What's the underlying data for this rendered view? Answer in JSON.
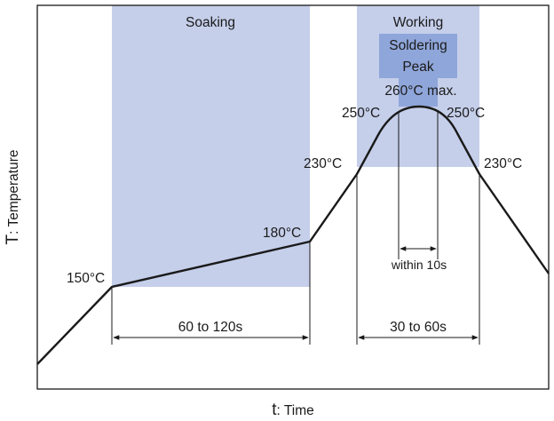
{
  "colors": {
    "zone": "#c5cfea",
    "peak_zone": "#8fa6da",
    "curve": "#1a1a1a",
    "frame": "#1a1a1a"
  },
  "zones": {
    "soaking": "Soaking",
    "working": "Working",
    "soldering_line1": "Soldering",
    "soldering_line2": "Peak"
  },
  "temps": {
    "t150": "150°C",
    "t180": "180°C",
    "t230_left": "230°C",
    "t230_right": "230°C",
    "t250_left": "250°C",
    "t250_right": "250°C",
    "peak_max": "260°C max."
  },
  "durations": {
    "soak": "60 to 120s",
    "working": "30 to 60s",
    "peak": "within 10s"
  },
  "axes": {
    "y_symbol": "T",
    "y_name": ": Temperature",
    "x_symbol": "t",
    "x_name": ": Time"
  }
}
